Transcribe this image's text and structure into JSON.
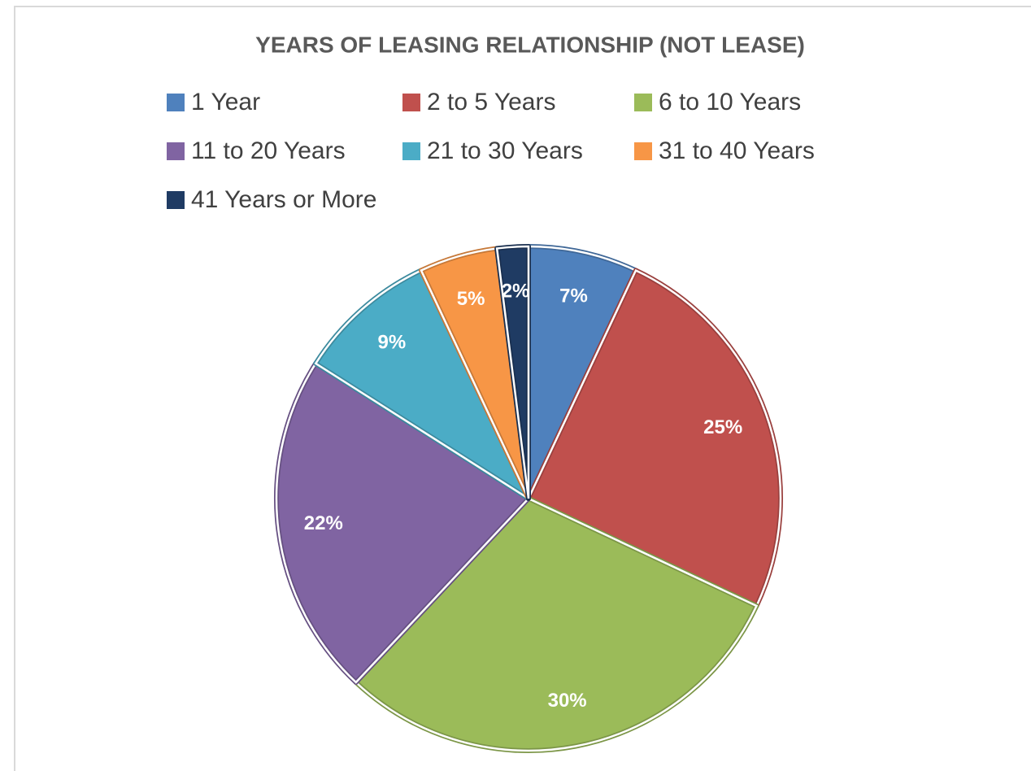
{
  "chart_data": {
    "type": "pie",
    "title": "YEARS OF LEASING RELATIONSHIP (NOT LEASE)",
    "categories": [
      "1 Year",
      "2 to 5 Years",
      "6 to 10 Years",
      "11 to 20 Years",
      "21 to 30 Years",
      "31 to 40 Years",
      "41 Years or More"
    ],
    "values": [
      7,
      25,
      30,
      22,
      9,
      5,
      2
    ],
    "value_labels": [
      "7%",
      "25%",
      "30%",
      "22%",
      "9%",
      "5%",
      "2%"
    ],
    "colors": [
      "#4f81bd",
      "#c0504d",
      "#9bbb59",
      "#8064a2",
      "#4bacc6",
      "#f79646",
      "#1f3b63"
    ],
    "legend": "top"
  }
}
